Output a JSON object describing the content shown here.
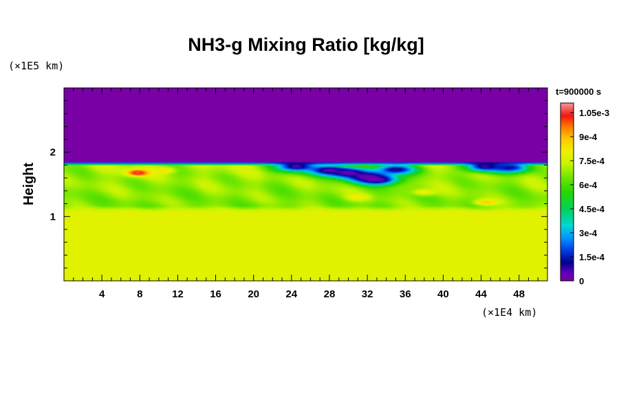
{
  "chart_data": {
    "type": "heatmap",
    "title": "NH3-g Mixing Ratio [kg/kg]",
    "ylabel": "Height",
    "xlabel": "",
    "x_unit": "(×1E4 km)",
    "y_unit": "(×1E5 km)",
    "time_label": "t=900000 s",
    "xlim": [
      0,
      51
    ],
    "ylim": [
      0,
      3
    ],
    "x_ticks": [
      4,
      8,
      12,
      16,
      20,
      24,
      28,
      32,
      36,
      40,
      44,
      48
    ],
    "x_tick_labels": [
      "4",
      "8",
      "12",
      "16",
      "20",
      "24",
      "28",
      "32",
      "36",
      "40",
      "44",
      "48"
    ],
    "y_ticks": [
      1,
      2
    ],
    "y_tick_labels": [
      "1",
      "2"
    ],
    "colorbar": {
      "range": [
        0,
        0.00111
      ],
      "tick_values": [
        0,
        0.00015,
        0.0003,
        0.00045,
        0.0006,
        0.00075,
        0.0009,
        0.00105
      ],
      "tick_labels": [
        "0",
        "1.5e-4",
        "3e-4",
        "4.5e-4",
        "6e-4",
        "7.5e-4",
        "9e-4",
        "1.05e-3"
      ]
    },
    "field": {
      "upper_layer": {
        "height_range": [
          1.83,
          3.0
        ],
        "value": 0.0
      },
      "lower_layer": {
        "height_range": [
          0,
          1.12
        ],
        "value": 0.00078
      },
      "mixing_layer_heights": [
        1.12,
        1.83
      ],
      "mixing_layer_values": [
        0.00065,
        0.00072
      ],
      "depleted_regions": [
        {
          "x": 24.5,
          "y": 1.78,
          "value": 5e-05
        },
        {
          "x": 28,
          "y": 1.72,
          "value": 3e-05
        },
        {
          "x": 30,
          "y": 1.68,
          "value": 3e-05
        },
        {
          "x": 32,
          "y": 1.62,
          "value": 2e-05
        },
        {
          "x": 33,
          "y": 1.57,
          "value": 2e-05
        },
        {
          "x": 35,
          "y": 1.73,
          "value": 8e-05
        },
        {
          "x": 44.5,
          "y": 1.78,
          "value": 5e-05
        },
        {
          "x": 47,
          "y": 1.76,
          "value": 0.00012
        }
      ],
      "enriched_regions": [
        {
          "x": 7.8,
          "y": 1.68,
          "value": 0.00108
        },
        {
          "x": 10.5,
          "y": 1.72,
          "value": 0.00085
        },
        {
          "x": 44.5,
          "y": 1.22,
          "value": 0.00088
        },
        {
          "x": 31,
          "y": 1.3,
          "value": 0.00082
        },
        {
          "x": 38,
          "y": 1.38,
          "value": 0.00082
        }
      ]
    }
  }
}
